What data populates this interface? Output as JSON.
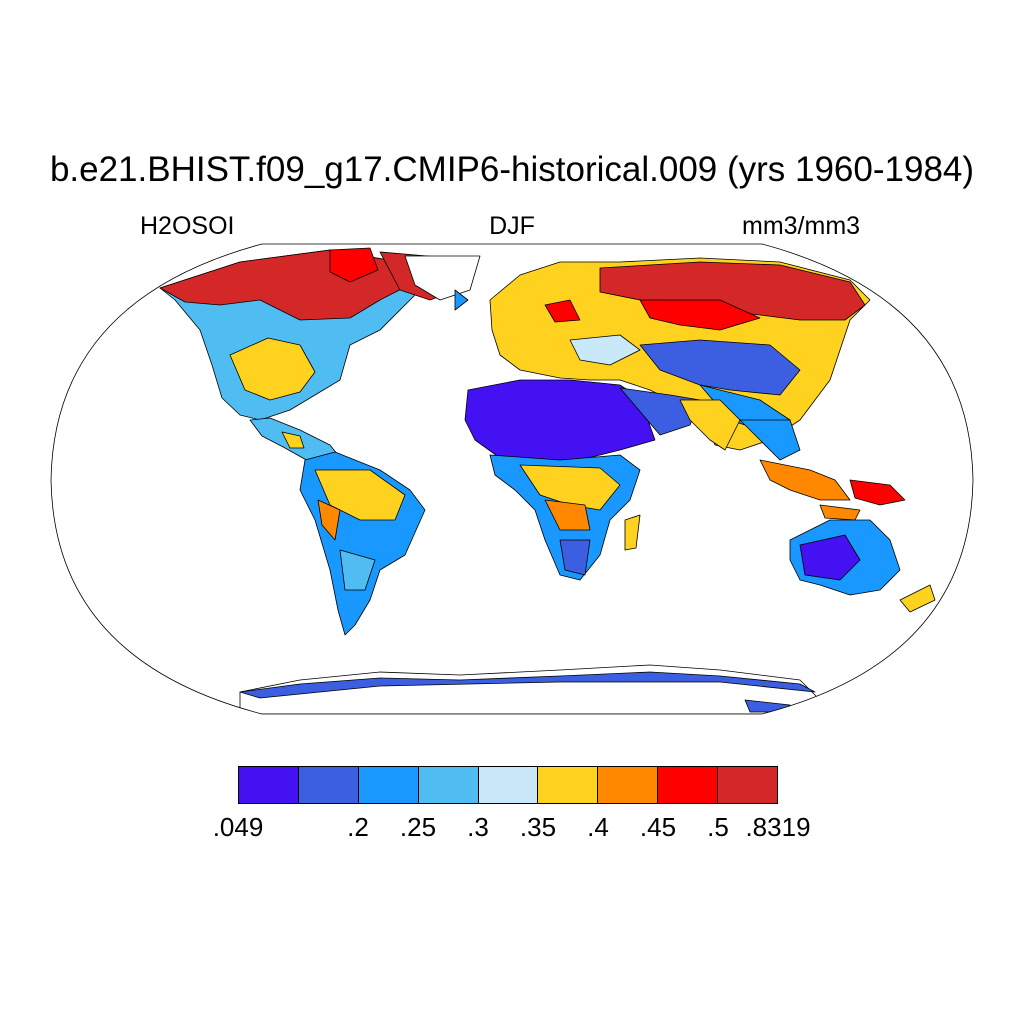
{
  "title": "b.e21.BHIST.f09_g17.CMIP6-historical.009 (yrs 1960-1984)",
  "left_label": "H2OSOI",
  "center_label": "DJF",
  "right_label": "mm3/mm3",
  "colorbar": {
    "colors": [
      "#4311f2",
      "#3b5fe0",
      "#1998ff",
      "#50bdf2",
      "#c9e8f8",
      "#ffd21f",
      "#ff8800",
      "#ff0000",
      "#d42828"
    ],
    "tick_labels": [
      ".049",
      ".2",
      ".25",
      ".3",
      ".35",
      ".4",
      ".45",
      ".5",
      ".8319"
    ]
  }
}
